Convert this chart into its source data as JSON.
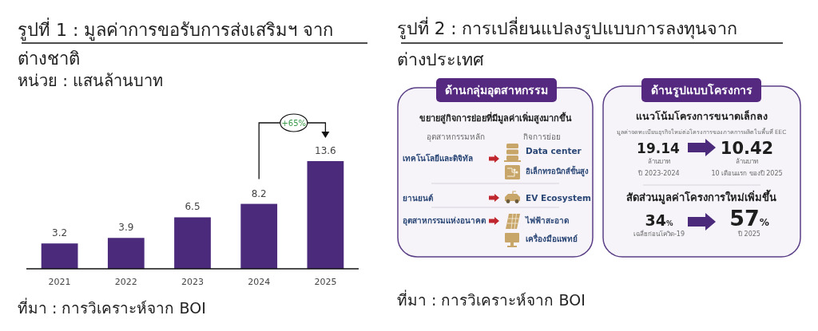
{
  "chart_data": [
    {
      "type": "bar",
      "title": "รูปที่ 1 : มูลค่าการขอรับการส่งเสริมฯ จากต่างชาติ",
      "subtitle": "หน่วย : แสนล้านบาท",
      "categories": [
        "2021",
        "2022",
        "2023",
        "2024",
        "2025"
      ],
      "values": [
        3.2,
        3.9,
        6.5,
        8.2,
        13.6
      ],
      "color": "#4b2a7b",
      "data_labels": true,
      "annotations": [
        "+65%",
        "ที่มา : การวิเคราะห์จาก BOI"
      ]
    },
    {
      "type": "other",
      "title": "รูปที่ 2 : การเปลี่ยนแปลงรูปแบบการลงทุนจากต่างประเทศ",
      "annotations": [
        "ด้านกลุ่มอุตสาหกรรม",
        "ขยายสู่กิจการย่อยที่มีมูลค่าเพิ่มสูงมากขึ้น",
        "อุตสาหกรรมหลัก",
        "กิจการย่อย",
        "เทคโนโลยีและดิจิทัล",
        "Data center",
        "อิเล็กทรอนิกส์ขั้นสูง",
        "ยานยนต์",
        "EV Ecosystem",
        "อุตสาหกรรมแห่งอนาคต",
        "ไฟฟ้าสะอาด",
        "เครื่องมือแพทย์",
        "ด้านรูปแบบโครงการ",
        "แนวโน้มโครงการขนาดเล็กลง",
        "มูลค่าจดทะเบียนธุรกิจใหม่ต่อโครงการของภาคการผลิตในพื้นที่ EEC",
        "19.14",
        "ล้านบาท",
        "ปี 2023-2024",
        "10.42",
        "ล้านบาท",
        "10 เดือนแรก ของปี 2025",
        "สัดส่วนมูลค่าโครงการใหม่เพิ่มขึ้น",
        "34%",
        "เฉลี่ยก่อนโควิด-19",
        "57%",
        "ปี 2025",
        "ที่มา : การวิเคราะห์จาก BOI"
      ]
    }
  ]
}
